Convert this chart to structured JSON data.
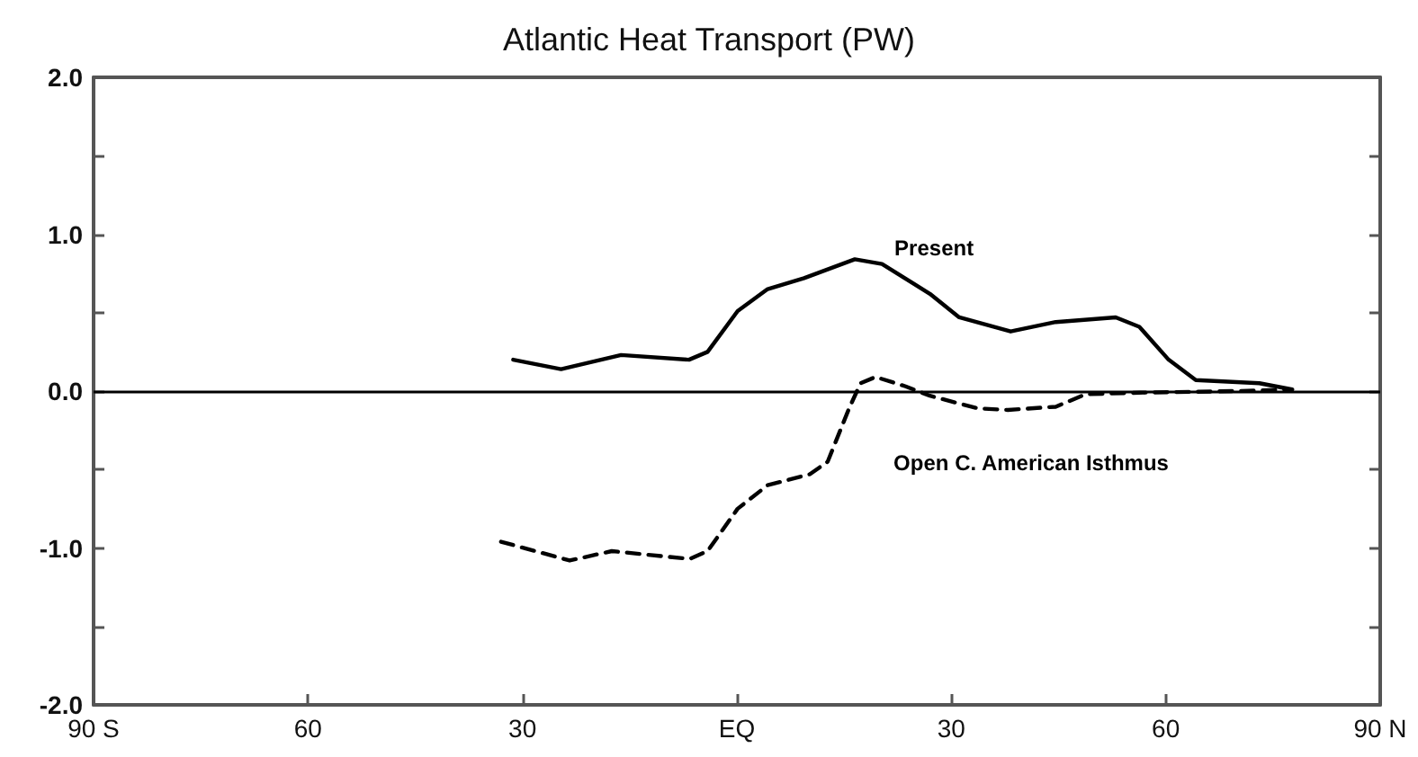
{
  "chart_data": {
    "type": "line",
    "title": "Atlantic Heat Transport (PW)",
    "xlim": [
      -90,
      90
    ],
    "xticks": [
      {
        "value": -90,
        "label": "90 S"
      },
      {
        "value": -60,
        "label": "60"
      },
      {
        "value": -30,
        "label": "30"
      },
      {
        "value": 0,
        "label": "EQ"
      },
      {
        "value": 30,
        "label": "30"
      },
      {
        "value": 60,
        "label": "60"
      },
      {
        "value": 90,
        "label": "90 N"
      }
    ],
    "ylim": [
      -2,
      2
    ],
    "yticks": [
      {
        "value": -2,
        "label": "-2.0"
      },
      {
        "value": -1.5,
        "label": null
      },
      {
        "value": -1,
        "label": "-1.0"
      },
      {
        "value": -0.5,
        "label": null
      },
      {
        "value": 0,
        "label": "0.0"
      },
      {
        "value": 0.5,
        "label": null
      },
      {
        "value": 1,
        "label": "1.0"
      },
      {
        "value": 1.5,
        "label": null
      },
      {
        "value": 2,
        "label": "2.0"
      }
    ],
    "grid": false,
    "marker": "none",
    "ref_lines": [
      {
        "axis": "y",
        "value": 0,
        "color": "#000000"
      }
    ],
    "series": [
      {
        "name": "Present",
        "color": "#000000",
        "line_style": "solid",
        "x": [
          -31.3,
          -24.6,
          -16.2,
          -6.7,
          -4.1,
          0.1,
          4.3,
          9.4,
          16.5,
          20.3,
          27.0,
          31.1,
          38.3,
          44.6,
          53.0,
          56.3,
          60.4,
          64.2,
          73.1,
          77.7
        ],
        "values": [
          0.2,
          0.14,
          0.23,
          0.2,
          0.25,
          0.51,
          0.65,
          0.72,
          0.84,
          0.81,
          0.62,
          0.47,
          0.38,
          0.44,
          0.47,
          0.41,
          0.2,
          0.07,
          0.05,
          0.01
        ]
      },
      {
        "name": "Open C. American Isthmus",
        "color": "#000000",
        "line_style": "dashed",
        "x": [
          -33.0,
          -23.4,
          -17.5,
          -6.6,
          -4.1,
          0.1,
          4.3,
          10.2,
          12.7,
          15.7,
          17.3,
          19.4,
          23.6,
          27.0,
          33.7,
          37.9,
          44.6,
          48.8,
          56.3,
          69.8,
          77.3
        ],
        "values": [
          -0.96,
          -1.08,
          -1.02,
          -1.07,
          -1.02,
          -0.75,
          -0.6,
          -0.53,
          -0.45,
          -0.11,
          0.05,
          0.09,
          0.03,
          -0.03,
          -0.11,
          -0.12,
          -0.1,
          -0.02,
          -0.01,
          0,
          0.01
        ]
      }
    ]
  }
}
